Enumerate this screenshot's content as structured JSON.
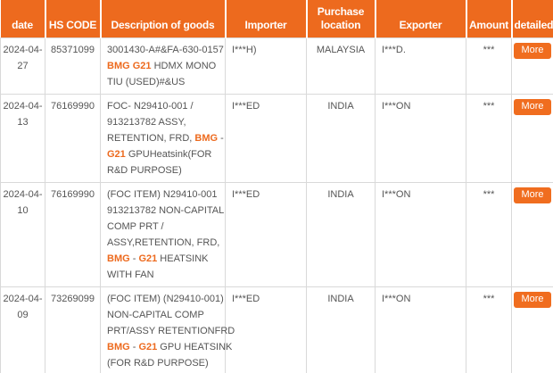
{
  "colors": {
    "header_background": "#ED6A1E",
    "header_text": "#FFFFFF",
    "highlight_text": "#ED6A1E",
    "more_button_background": "#F06D1F",
    "body_text": "#555555",
    "grid_line": "#D9D9D9"
  },
  "table": {
    "columns": [
      {
        "key": "date",
        "label": "date"
      },
      {
        "key": "hs_code",
        "label": "HS CODE"
      },
      {
        "key": "description",
        "label": "Description of goods"
      },
      {
        "key": "importer",
        "label": "Importer"
      },
      {
        "key": "purchase_location",
        "label": "Purchase location"
      },
      {
        "key": "exporter",
        "label": "Exporter"
      },
      {
        "key": "amount",
        "label": "Amount"
      },
      {
        "key": "detailed",
        "label": "detailed"
      }
    ],
    "rows": [
      {
        "date": "2024-04-27",
        "hs_code": "85371099",
        "description": [
          [
            {
              "t": "3001430-A#&FA-630-0157"
            }
          ],
          [
            {
              "t": "BMG G21",
              "h": true
            },
            {
              "t": " HDMX MONO"
            }
          ],
          [
            {
              "t": "TIU (USED)#&US"
            }
          ]
        ],
        "importer": "I***H)",
        "purchase_location": "MALAYSIA",
        "exporter": "I***D.",
        "amount": "***",
        "detailed_label": "More"
      },
      {
        "date": "2024-04-13",
        "hs_code": "76169990",
        "description": [
          [
            {
              "t": "FOC- N29410-001 /"
            }
          ],
          [
            {
              "t": "913213782 ASSY,"
            }
          ],
          [
            {
              "t": "RETENTION, FRD, "
            },
            {
              "t": "BMG",
              "h": true
            },
            {
              "t": " -"
            }
          ],
          [
            {
              "t": "G21",
              "h": true
            },
            {
              "t": " GPUHeatsink(FOR"
            }
          ],
          [
            {
              "t": "R&D PURPOSE)"
            }
          ]
        ],
        "importer": "I***ED",
        "purchase_location": "INDIA",
        "exporter": "I***ON",
        "amount": "***",
        "detailed_label": "More"
      },
      {
        "date": "2024-04-10",
        "hs_code": "76169990",
        "description": [
          [
            {
              "t": "(FOC ITEM) N29410-001"
            }
          ],
          [
            {
              "t": "913213782 NON-CAPITAL"
            }
          ],
          [
            {
              "t": "COMP PRT /"
            }
          ],
          [
            {
              "t": "ASSY,RETENTION, FRD,"
            }
          ],
          [
            {
              "t": "BMG",
              "h": true
            },
            {
              "t": " - "
            },
            {
              "t": "G21",
              "h": true
            },
            {
              "t": " HEATSINK"
            }
          ],
          [
            {
              "t": "WITH FAN"
            }
          ]
        ],
        "importer": "I***ED",
        "purchase_location": "INDIA",
        "exporter": "I***ON",
        "amount": "***",
        "detailed_label": "More"
      },
      {
        "date": "2024-04-09",
        "hs_code": "73269099",
        "description": [
          [
            {
              "t": "(FOC ITEM) (N29410-001)"
            }
          ],
          [
            {
              "t": "NON-CAPITAL COMP"
            }
          ],
          [
            {
              "t": "PRT/ASSY RETENTIONFRD"
            }
          ],
          [
            {
              "t": "BMG",
              "h": true
            },
            {
              "t": " - "
            },
            {
              "t": "G21",
              "h": true
            },
            {
              "t": " GPU HEATSINK"
            }
          ],
          [
            {
              "t": "(FOR R&D PURPOSE)"
            }
          ]
        ],
        "importer": "I***ED",
        "purchase_location": "INDIA",
        "exporter": "I***ON",
        "amount": "***",
        "detailed_label": "More"
      }
    ]
  }
}
